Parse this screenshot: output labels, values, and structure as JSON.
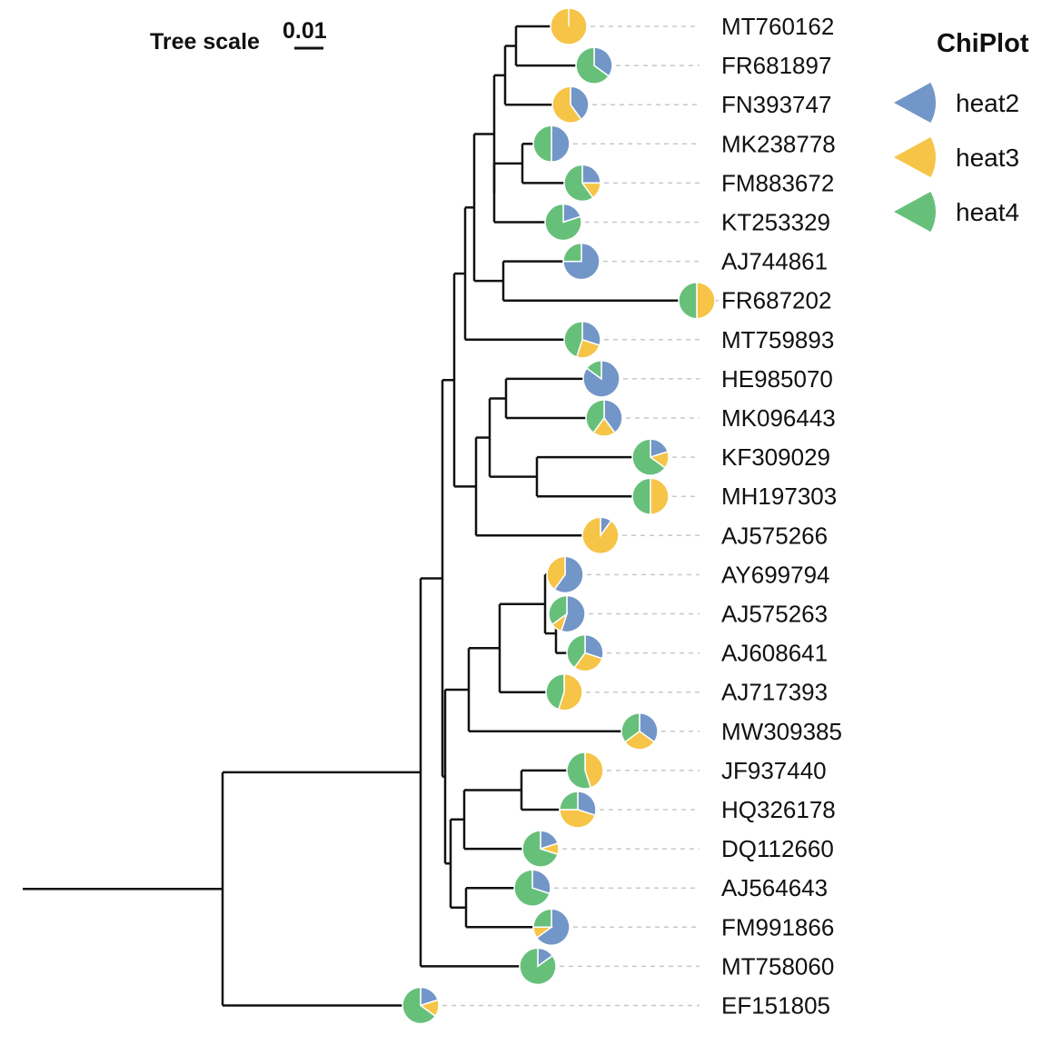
{
  "scale": {
    "title": "Tree scale",
    "value": "0.01"
  },
  "legend": {
    "title": "ChiPlot",
    "items": [
      {
        "name": "heat2",
        "color": "#7296c8"
      },
      {
        "name": "heat3",
        "color": "#f6c447"
      },
      {
        "name": "heat4",
        "color": "#67c07a"
      }
    ]
  },
  "leaves": [
    {
      "id": "MT760162",
      "pie": [
        0,
        1,
        0
      ]
    },
    {
      "id": "FR681897",
      "pie": [
        0.35,
        0,
        0.65
      ]
    },
    {
      "id": "FN393747",
      "pie": [
        0.4,
        0.6,
        0
      ]
    },
    {
      "id": "MK238778",
      "pie": [
        0.5,
        0,
        0.5
      ]
    },
    {
      "id": "FM883672",
      "pie": [
        0.25,
        0.15,
        0.6
      ]
    },
    {
      "id": "KT253329",
      "pie": [
        0.2,
        0,
        0.8
      ]
    },
    {
      "id": "AJ744861",
      "pie": [
        0.75,
        0,
        0.25
      ]
    },
    {
      "id": "FR687202",
      "pie": [
        0,
        0.5,
        0.5
      ]
    },
    {
      "id": "MT759893",
      "pie": [
        0.3,
        0.25,
        0.45
      ]
    },
    {
      "id": "HE985070",
      "pie": [
        0.85,
        0,
        0.15
      ]
    },
    {
      "id": "MK096443",
      "pie": [
        0.4,
        0.2,
        0.4
      ]
    },
    {
      "id": "KF309029",
      "pie": [
        0.2,
        0.15,
        0.65
      ]
    },
    {
      "id": "MH197303",
      "pie": [
        0,
        0.5,
        0.5
      ]
    },
    {
      "id": "AJ575266",
      "pie": [
        0.1,
        0.9,
        0
      ]
    },
    {
      "id": "AY699794",
      "pie": [
        0.6,
        0.4,
        0
      ]
    },
    {
      "id": "AJ575263",
      "pie": [
        0.55,
        0.1,
        0.35
      ]
    },
    {
      "id": "AJ608641",
      "pie": [
        0.3,
        0.3,
        0.4
      ]
    },
    {
      "id": "AJ717393",
      "pie": [
        0,
        0.55,
        0.45
      ]
    },
    {
      "id": "MW309385",
      "pie": [
        0.35,
        0.3,
        0.35
      ]
    },
    {
      "id": "JF937440",
      "pie": [
        0,
        0.45,
        0.55
      ]
    },
    {
      "id": "HQ326178",
      "pie": [
        0.3,
        0.45,
        0.25
      ]
    },
    {
      "id": "DQ112660",
      "pie": [
        0.2,
        0.1,
        0.7
      ]
    },
    {
      "id": "AJ564643",
      "pie": [
        0.3,
        0,
        0.7
      ]
    },
    {
      "id": "FM991866",
      "pie": [
        0.65,
        0.1,
        0.25
      ]
    },
    {
      "id": "MT758060",
      "pie": [
        0.15,
        0,
        0.85
      ]
    },
    {
      "id": "EF151805",
      "pie": [
        0.2,
        0.15,
        0.65
      ]
    }
  ]
}
